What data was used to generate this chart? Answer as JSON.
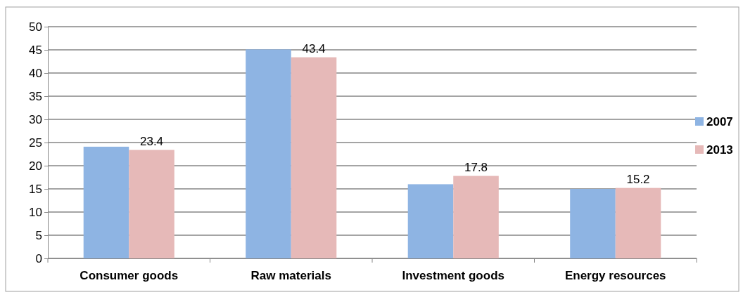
{
  "chart_data": {
    "type": "bar",
    "categories": [
      "Consumer goods",
      "Raw materials",
      "Investment goods",
      "Energy resources"
    ],
    "series": [
      {
        "name": "2007",
        "color": "#8eb4e3",
        "values": [
          24.1,
          45.1,
          16,
          15
        ]
      },
      {
        "name": "2013",
        "color": "#e6b9b8",
        "values": [
          23.4,
          43.4,
          17.8,
          15.2
        ],
        "value_labels": [
          "23.4",
          "43.4",
          "17.8",
          "15.2"
        ]
      }
    ],
    "ylim": [
      0,
      50
    ],
    "yticks": [
      0,
      5,
      10,
      15,
      20,
      25,
      30,
      35,
      40,
      45,
      50
    ],
    "grid": "y",
    "legend": "right"
  }
}
